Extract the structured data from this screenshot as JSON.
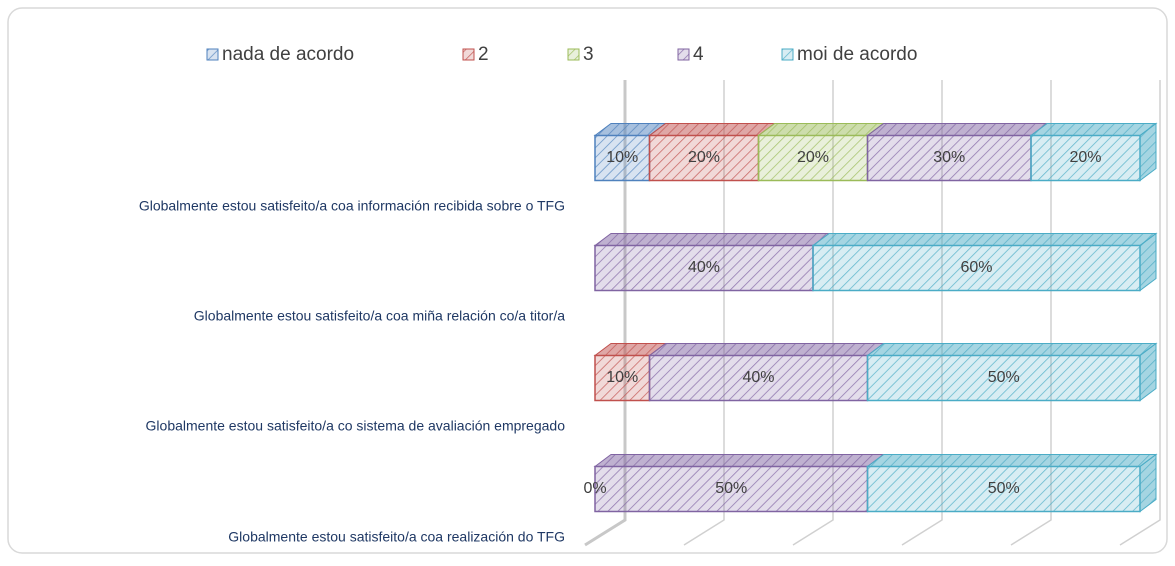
{
  "chart_data": {
    "type": "bar",
    "orientation": "horizontal",
    "stacked": true,
    "categories": [
      "Globalmente estou satisfeito/a coa información recibida sobre o TFG",
      "Globalmente estou satisfeito/a coa miña relación co/a titor/a",
      "Globalmente estou satisfeito/a co sistema de avaliación empregado",
      "Globalmente estou satisfeito/a coa realización do TFG"
    ],
    "series": [
      {
        "name": "nada de acordo",
        "color": "#4f81bd",
        "values": [
          10,
          0,
          0,
          0
        ],
        "value_labels": [
          "10%",
          null,
          null,
          "0%"
        ]
      },
      {
        "name": "2",
        "color": "#c0504d",
        "values": [
          20,
          0,
          10,
          0
        ],
        "value_labels": [
          "20%",
          null,
          "10%",
          null
        ]
      },
      {
        "name": "3",
        "color": "#9bbb59",
        "values": [
          20,
          0,
          0,
          0
        ],
        "value_labels": [
          "20%",
          null,
          null,
          null
        ]
      },
      {
        "name": "4",
        "color": "#8064a2",
        "values": [
          30,
          40,
          40,
          50
        ],
        "value_labels": [
          "30%",
          "40%",
          "40%",
          "50%"
        ]
      },
      {
        "name": "moi de acordo",
        "color": "#4bacc6",
        "values": [
          20,
          60,
          50,
          50
        ],
        "value_labels": [
          "20%",
          "60%",
          "50%",
          "50%"
        ]
      }
    ],
    "xlim": [
      0,
      100
    ],
    "xticks": [
      0,
      20,
      40,
      60,
      80,
      100
    ],
    "grid": true,
    "legend": "top"
  }
}
